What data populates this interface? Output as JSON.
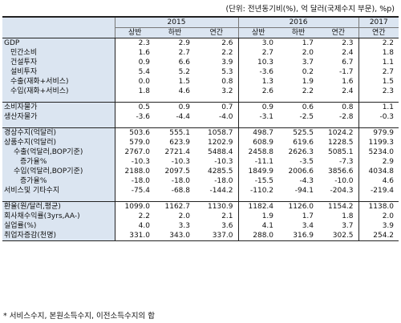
{
  "unit": "(단위: 전년동기비(%), 억 달러(국제수지 부문), %p)",
  "years": [
    "2015",
    "2016",
    "2017"
  ],
  "subheaders": [
    "상반",
    "하반",
    "연간",
    "상반",
    "하반",
    "연간",
    "연간"
  ],
  "rows": [
    {
      "label": "GDP",
      "vals": [
        "2.3",
        "2.9",
        "2.6",
        "3.0",
        "1.7",
        "2.3",
        "2.2"
      ]
    },
    {
      "label": "민간소비",
      "vals": [
        "1.6",
        "2.7",
        "2.2",
        "2.7",
        "2.0",
        "2.4",
        "1.8"
      ]
    },
    {
      "label": "건설투자",
      "vals": [
        "0.9",
        "6.6",
        "3.9",
        "10.3",
        "3.7",
        "6.7",
        "1.1"
      ]
    },
    {
      "label": "설비투자",
      "vals": [
        "5.4",
        "5.2",
        "5.3",
        "-3.6",
        "0.2",
        "-1.7",
        "2.7"
      ]
    },
    {
      "label": "수출(재화+서비스)",
      "vals": [
        "0.0",
        "1.5",
        "0.8",
        "1.3",
        "1.9",
        "1.6",
        "1.5"
      ]
    },
    {
      "label": "수입(재화+서비스)",
      "vals": [
        "1.8",
        "4.6",
        "3.2",
        "2.6",
        "2.2",
        "2.4",
        "2.3"
      ]
    },
    {
      "label": "소비자물가",
      "vals": [
        "0.5",
        "0.9",
        "0.7",
        "0.9",
        "0.6",
        "0.8",
        "1.1"
      ]
    },
    {
      "label": "생산자물가",
      "vals": [
        "-3.6",
        "-4.4",
        "-4.0",
        "-3.1",
        "-2.5",
        "-2.8",
        "-0.3"
      ]
    },
    {
      "label": "경상수지(억달러)",
      "vals": [
        "503.6",
        "555.1",
        "1058.7",
        "498.7",
        "525.5",
        "1024.2",
        "979.9"
      ]
    },
    {
      "label": "상품수지(억달러)",
      "vals": [
        "579.0",
        "623.9",
        "1202.9",
        "608.9",
        "619.6",
        "1228.5",
        "1199.3"
      ]
    },
    {
      "label": "수출(억달러,BOP기준)",
      "vals": [
        "2767.0",
        "2721.4",
        "5488.4",
        "2458.8",
        "2626.3",
        "5085.1",
        "5234.0"
      ]
    },
    {
      "label": "증가율%",
      "vals": [
        "-10.3",
        "-10.3",
        "-10.3",
        "-11.1",
        "-3.5",
        "-7.3",
        "2.9"
      ]
    },
    {
      "label": "수입(억달러,BOP기준)",
      "vals": [
        "2188.0",
        "2097.5",
        "4285.5",
        "1849.9",
        "2006.6",
        "3856.6",
        "4034.8"
      ]
    },
    {
      "label": "증가율%",
      "vals": [
        "-18.0",
        "-18.0",
        "-18.0",
        "-15.5",
        "-4.3",
        "-10.0",
        "4.6"
      ]
    },
    {
      "label": "서비스및 기타수지",
      "vals": [
        "-75.4",
        "-68.8",
        "-144.2",
        "-110.2",
        "-94.1",
        "-204.3",
        "-219.4"
      ]
    },
    {
      "label": "환율(원/달러,평균)",
      "vals": [
        "1099.0",
        "1162.7",
        "1130.9",
        "1182.4",
        "1126.0",
        "1154.2",
        "1138.0"
      ]
    },
    {
      "label": "회사채수익률(3yrs,AA-)",
      "vals": [
        "2.2",
        "2.0",
        "2.1",
        "1.9",
        "1.7",
        "1.8",
        "2.0"
      ]
    },
    {
      "label": "실업률(%)",
      "vals": [
        "4.0",
        "3.3",
        "3.6",
        "4.1",
        "3.4",
        "3.7",
        "3.9"
      ]
    },
    {
      "label": "취업자증감(천명)",
      "vals": [
        "331.0",
        "343.0",
        "337.0",
        "288.0",
        "316.9",
        "302.5",
        "254.2"
      ]
    }
  ],
  "footnote": "* 서비스수지, 본원소득수지, 이전소득수지의 합"
}
